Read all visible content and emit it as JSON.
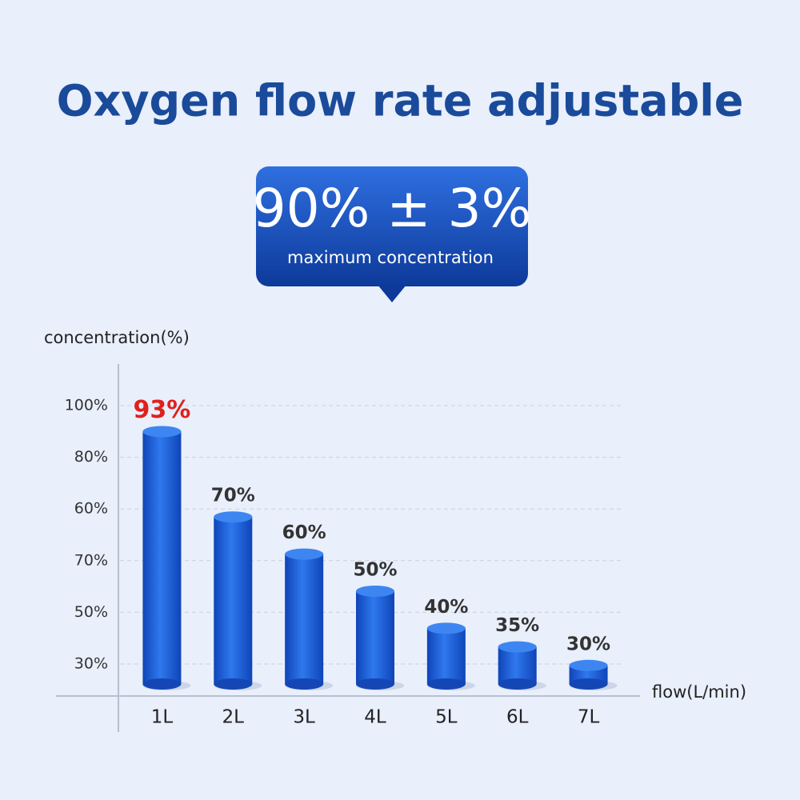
{
  "chart_data": {
    "type": "bar",
    "title": "Oxygen flow rate adjustable",
    "callout": {
      "headline": "90% ± 3%",
      "caption": "maximum concentration"
    },
    "y_label": "concentration(%)",
    "x_label": "flow(L/min)",
    "y_axis_labels": [
      "100%",
      "80%",
      "60%",
      "70%",
      "50%",
      "30%"
    ],
    "categories": [
      "1L",
      "2L",
      "3L",
      "4L",
      "5L",
      "6L",
      "7L"
    ],
    "values": [
      93,
      70,
      60,
      50,
      40,
      35,
      30
    ],
    "value_labels": [
      "93%",
      "70%",
      "60%",
      "50%",
      "40%",
      "35%",
      "30%"
    ],
    "value_label_colors": [
      "#e0201c",
      "#333333",
      "#333333",
      "#333333",
      "#333333",
      "#333333",
      "#333333"
    ],
    "color": "#1a5fd6",
    "ylim": [
      25,
      100
    ],
    "grid": true
  }
}
